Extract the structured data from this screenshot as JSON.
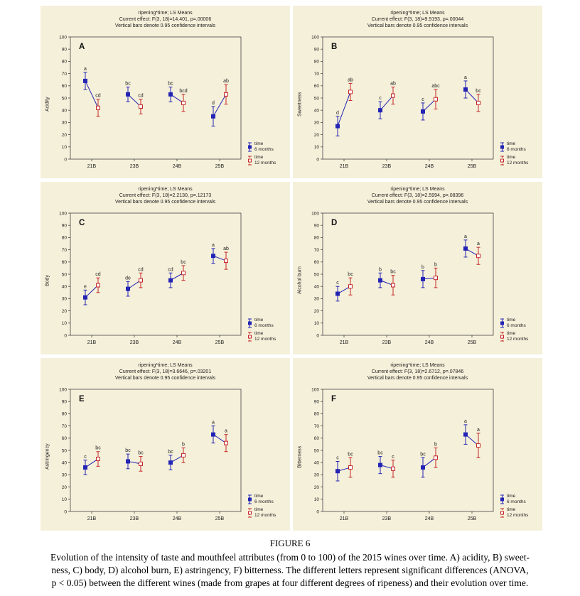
{
  "figure": {
    "caption_label": "FIGURE 6",
    "caption_lines": [
      "Evolution of the intensity of taste and mouthfeel attributes (from 0 to 100) of the 2015 wines over time. A) acidity, B) sweet-",
      "ness, C) body, D) alcohol burn, E) astringency, F) bitterness. The different letters represent significant differences (ANOVA,",
      "p < 0.05) between the different wines (made from grapes at four different degrees of ripeness) and their evolution over time."
    ]
  },
  "colors": {
    "six_months": "#2424b4",
    "twelve_months": "#c42727",
    "panel_background": "#f5f0da",
    "axis": "#444444",
    "text": "#222222"
  },
  "legend": {
    "items": [
      {
        "line1": "time",
        "line2": "6 months",
        "series": "six_months",
        "style": "solid"
      },
      {
        "line1": "time",
        "line2": "12 months",
        "series": "twelve_months",
        "style": "dashed"
      }
    ]
  },
  "chart_data": [
    {
      "type": "line",
      "panel_letter": "A",
      "title": "ripening*time; LS Means",
      "subtitle": "Current effect: F(3, 18)=14.401, p=.00006",
      "note": "Vertical bars denote 0.95 confidence intervals",
      "ylabel": "Acidity",
      "ylim": [
        0,
        100
      ],
      "ytick_step": 10,
      "categories": [
        "21B",
        "23B",
        "24B",
        "25B"
      ],
      "series": [
        {
          "name": "time 6 months",
          "values": [
            64,
            53,
            53,
            35
          ],
          "ci": [
            7,
            6,
            6,
            8
          ],
          "letters": [
            "a",
            "bc",
            "bc",
            "d"
          ]
        },
        {
          "name": "time 12 months",
          "values": [
            42,
            43,
            46,
            53
          ],
          "ci": [
            7,
            6,
            7,
            8
          ],
          "letters": [
            "cd",
            "cd",
            "bcd",
            "ab"
          ]
        }
      ]
    },
    {
      "type": "line",
      "panel_letter": "B",
      "title": "ripening*time; LS Means",
      "subtitle": "Current effect: F(3, 18)=9.9193, p=.00044",
      "note": "Vertical bars denote 0.95 confidence intervals",
      "ylabel": "Sweetness",
      "ylim": [
        0,
        100
      ],
      "ytick_step": 10,
      "categories": [
        "21B",
        "23B",
        "24B",
        "25B"
      ],
      "series": [
        {
          "name": "time 6 months",
          "values": [
            27,
            40,
            39,
            57
          ],
          "ci": [
            8,
            7,
            7,
            7
          ],
          "letters": [
            "d",
            "c",
            "c",
            "a"
          ]
        },
        {
          "name": "time 12 months",
          "values": [
            55,
            52,
            49,
            46
          ],
          "ci": [
            7,
            7,
            8,
            7
          ],
          "letters": [
            "ab",
            "ab",
            "abc",
            "bc"
          ]
        }
      ]
    },
    {
      "type": "line",
      "panel_letter": "C",
      "title": "ripening*time; LS Means",
      "subtitle": "Current effect: F(3, 18)=2.2130, p=.12173",
      "note": "Vertical bars denote 0.95 confidence intervals",
      "ylabel": "Body",
      "ylim": [
        0,
        100
      ],
      "ytick_step": 10,
      "categories": [
        "21B",
        "23B",
        "24B",
        "25B"
      ],
      "series": [
        {
          "name": "time 6 months",
          "values": [
            31,
            38,
            45,
            65
          ],
          "ci": [
            6,
            6,
            6,
            6
          ],
          "letters": [
            "e",
            "de",
            "cd",
            "a"
          ]
        },
        {
          "name": "time 12 months",
          "values": [
            41,
            45,
            51,
            61
          ],
          "ci": [
            6,
            6,
            6,
            7
          ],
          "letters": [
            "cd",
            "cd",
            "bc",
            "ab"
          ]
        }
      ]
    },
    {
      "type": "line",
      "panel_letter": "D",
      "title": "ripening*time; LS Means",
      "subtitle": "Current effect: F(3, 18)=2.5994, p=.08396",
      "note": "Vertical bars denote 0.95 confidence intervals",
      "ylabel": "Alcohol burn",
      "ylim": [
        0,
        100
      ],
      "ytick_step": 10,
      "categories": [
        "21B",
        "23B",
        "24B",
        "25B"
      ],
      "series": [
        {
          "name": "time 6 months",
          "values": [
            34,
            45,
            46,
            71
          ],
          "ci": [
            6,
            6,
            7,
            7
          ],
          "letters": [
            "c",
            "b",
            "b",
            "a"
          ]
        },
        {
          "name": "time 12 months",
          "values": [
            40,
            41,
            47,
            65
          ],
          "ci": [
            7,
            8,
            8,
            7
          ],
          "letters": [
            "bc",
            "bc",
            "b",
            "a"
          ]
        }
      ]
    },
    {
      "type": "line",
      "panel_letter": "E",
      "title": "ripening*time; LS Means",
      "subtitle": "Current effect: F(3, 18)=3.6646, p=.03201",
      "note": "Vertical bars denote 0.95 confidence intervals",
      "ylabel": "Astringency",
      "ylim": [
        0,
        100
      ],
      "ytick_step": 10,
      "categories": [
        "21B",
        "23B",
        "24B",
        "25B"
      ],
      "series": [
        {
          "name": "time 6 months",
          "values": [
            36,
            41,
            40,
            63
          ],
          "ci": [
            6,
            6,
            6,
            7
          ],
          "letters": [
            "c",
            "bc",
            "bc",
            "a"
          ]
        },
        {
          "name": "time 12 months",
          "values": [
            43,
            39,
            46,
            56
          ],
          "ci": [
            6,
            6,
            6,
            7
          ],
          "letters": [
            "bc",
            "bc",
            "b",
            "a"
          ]
        }
      ]
    },
    {
      "type": "line",
      "panel_letter": "F",
      "title": "ripening*time; LS Means",
      "subtitle": "Current effect: F(3, 18)=2.6712, p=.07846",
      "note": "Vertical bars denote 0.95 confidence intervals",
      "ylabel": "Bitterness",
      "ylim": [
        0,
        100
      ],
      "ytick_step": 10,
      "categories": [
        "21B",
        "23B",
        "24B",
        "25B"
      ],
      "series": [
        {
          "name": "time 6 months",
          "values": [
            33,
            38,
            36,
            63
          ],
          "ci": [
            8,
            7,
            8,
            8
          ],
          "letters": [
            "c",
            "bc",
            "bc",
            "a"
          ]
        },
        {
          "name": "time 12 months",
          "values": [
            36,
            35,
            44,
            54
          ],
          "ci": [
            8,
            7,
            8,
            10
          ],
          "letters": [
            "bc",
            "c",
            "b",
            "a"
          ]
        }
      ]
    }
  ]
}
